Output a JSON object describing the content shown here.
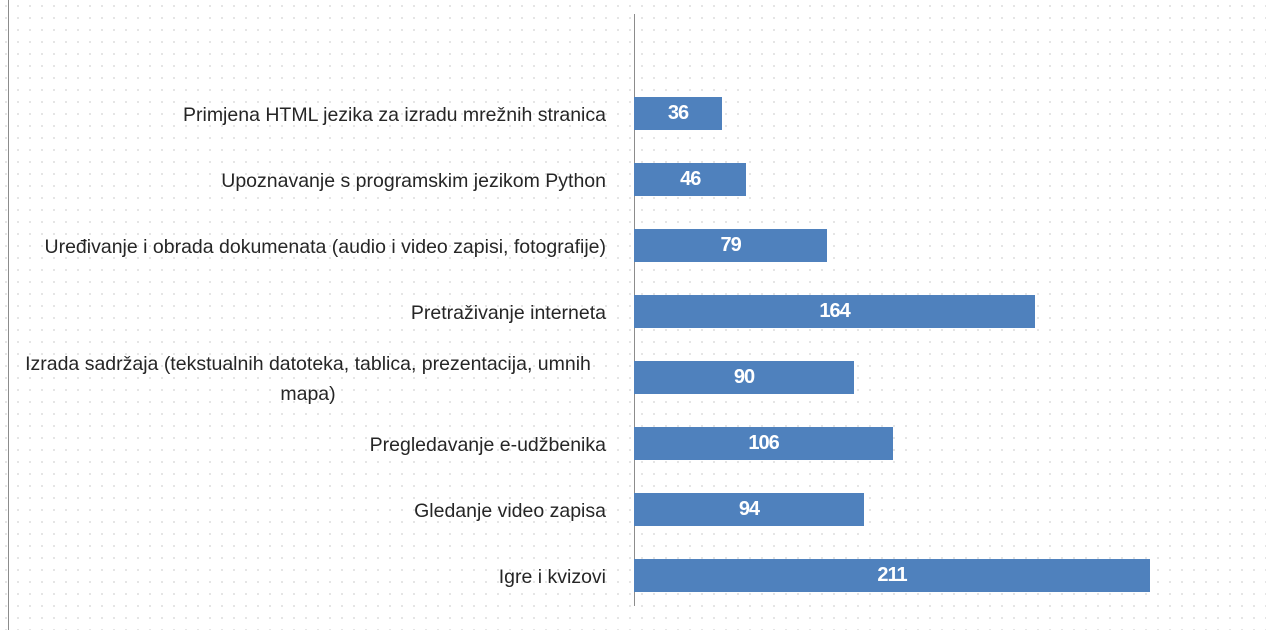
{
  "chart_data": {
    "type": "barh",
    "categories": [
      "Primjena HTML jezika za izradu mrežnih stranica",
      "Upoznavanje s programskim jezikom Python",
      "Uređivanje i obrada dokumenata (audio i video zapisi, fotografije)",
      "Pretraživanje interneta",
      "Izrada sadržaja (tekstualnih datoteka, tablica, prezentacija, umnih mapa)",
      "Pregledavanje e-udžbenika",
      "Gledanje video zapisa",
      "Igre i kvizovi"
    ],
    "values": [
      36,
      46,
      79,
      164,
      90,
      106,
      94,
      211
    ],
    "color": "#4f81bd"
  }
}
